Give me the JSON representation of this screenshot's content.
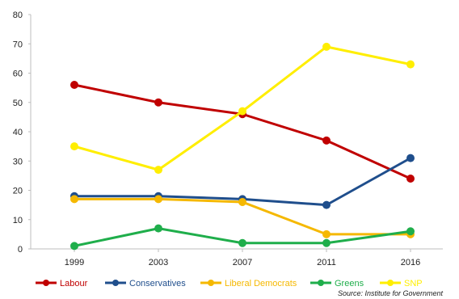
{
  "chart_data": {
    "type": "line",
    "categories": [
      "1999",
      "2003",
      "2007",
      "2011",
      "2016"
    ],
    "ylim": [
      0,
      80
    ],
    "yticks": [
      0,
      10,
      20,
      30,
      40,
      50,
      60,
      70,
      80
    ],
    "grid": false,
    "legend_position": "bottom",
    "series": [
      {
        "name": "Labour",
        "color": "#c00000",
        "values": [
          56,
          50,
          46,
          37,
          24
        ]
      },
      {
        "name": "Conservatives",
        "color": "#1f4e8c",
        "values": [
          18,
          18,
          17,
          15,
          31
        ]
      },
      {
        "name": "Liberal Democrats",
        "color": "#f5b800",
        "values": [
          17,
          17,
          16,
          5,
          5
        ]
      },
      {
        "name": "Greens",
        "color": "#1fae4b",
        "values": [
          1,
          7,
          2,
          2,
          6
        ]
      },
      {
        "name": "SNP",
        "color": "#ffee00",
        "values": [
          35,
          27,
          47,
          69,
          63
        ]
      }
    ],
    "source": "Source: Institute for Government"
  }
}
